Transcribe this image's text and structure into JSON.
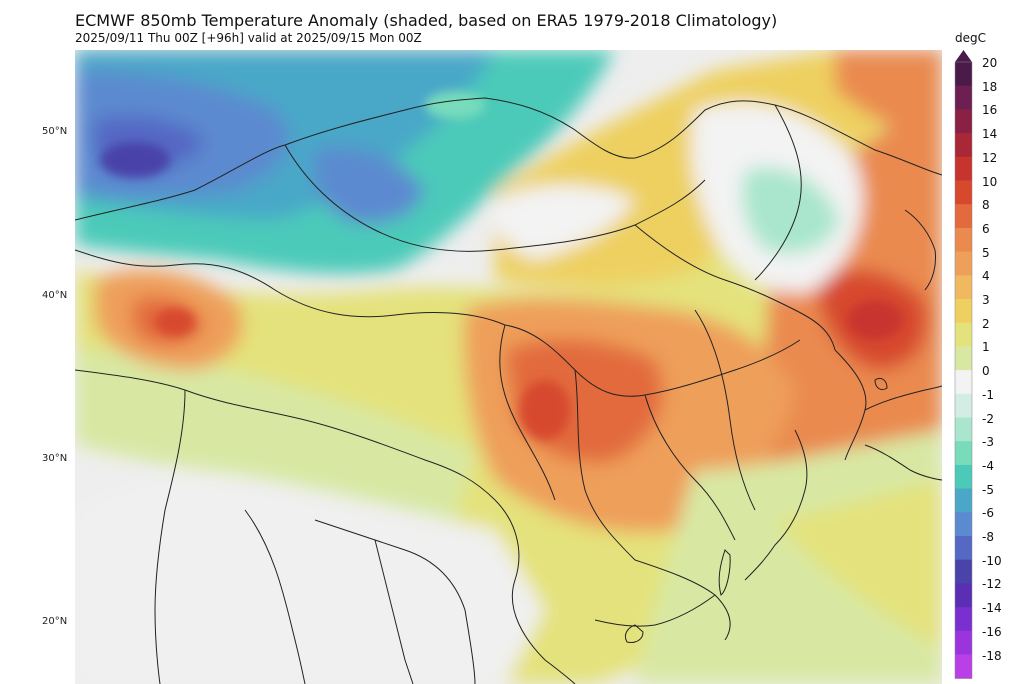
{
  "title": "ECMWF 850mb Temperature Anomaly (shaded, based on ERA5 1979-2018 Climatology)",
  "subtitle": "2025/09/11 Thu 00Z [+96h] valid at 2025/09/15 Mon 00Z",
  "lat_labels": [
    "50°N",
    "40°N",
    "30°N",
    "20°N"
  ],
  "colorbar": {
    "unit": "degC",
    "ticks": [
      "20",
      "18",
      "16",
      "14",
      "12",
      "10",
      "8",
      "6",
      "5",
      "4",
      "3",
      "2",
      "1",
      "0",
      "-1",
      "-2",
      "-3",
      "-4",
      "-5",
      "-6",
      "-8",
      "-10",
      "-12",
      "-14",
      "-16",
      "-18"
    ],
    "colors": [
      "#4a1a4a",
      "#6e1f52",
      "#8a2145",
      "#a82838",
      "#c7342e",
      "#d7492d",
      "#e26a3c",
      "#ea8a4f",
      "#ee9f5a",
      "#f0b95f",
      "#eed061",
      "#e4e27c",
      "#d8e8a3",
      "#f3f3f3",
      "#d4ede4",
      "#a9e6cd",
      "#78dcbb",
      "#4ccab9",
      "#4aa7c8",
      "#5b8ad0",
      "#5468c4",
      "#4a43a9",
      "#5a2fb4",
      "#7a2fd0",
      "#9a35de",
      "#b93fe6"
    ]
  }
}
